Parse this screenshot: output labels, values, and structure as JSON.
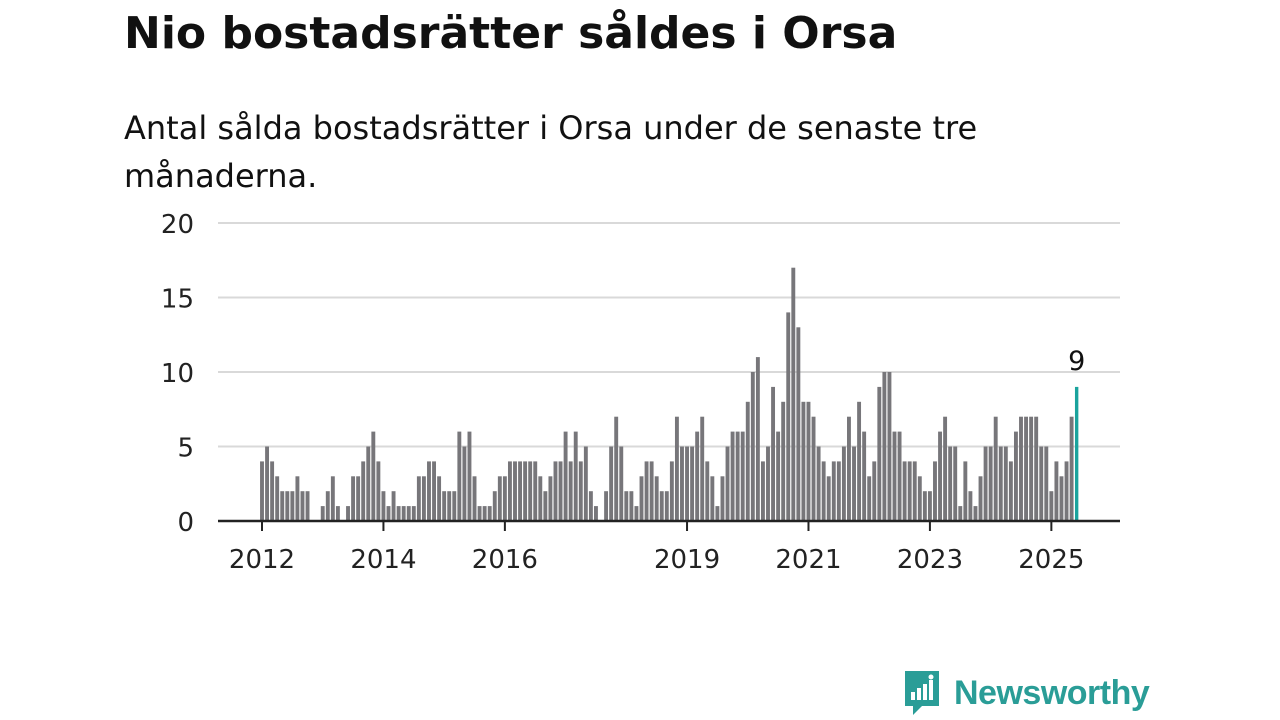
{
  "title": "Nio bostadsrätter såldes i Orsa",
  "subtitle": "Antal sålda bostadsrätter i Orsa under de senaste tre månaderna.",
  "brand": "Newsworthy",
  "colors": {
    "bar": "#77767a",
    "highlight": "#1aa39d",
    "grid": "#d9d9d9",
    "axis": "#222222",
    "brand": "#2a9d97"
  },
  "chart_data": {
    "type": "bar",
    "x_start": "2012-01",
    "x_end": "2025-06",
    "ylim": [
      0,
      20
    ],
    "yticks": [
      0,
      5,
      10,
      15,
      20
    ],
    "ytick_labels": [
      "0",
      "5",
      "10",
      "15",
      "20"
    ],
    "xticks": [
      "2012",
      "2014",
      "2016",
      "2019",
      "2021",
      "2023",
      "2025"
    ],
    "grid": true,
    "highlight_label": "9",
    "values": [
      4,
      5,
      4,
      3,
      2,
      2,
      2,
      3,
      2,
      2,
      0,
      0,
      1,
      2,
      3,
      1,
      0,
      1,
      3,
      3,
      4,
      5,
      6,
      4,
      2,
      1,
      2,
      1,
      1,
      1,
      1,
      3,
      3,
      4,
      4,
      3,
      2,
      2,
      2,
      6,
      5,
      6,
      3,
      1,
      1,
      1,
      2,
      3,
      3,
      4,
      4,
      4,
      4,
      4,
      4,
      3,
      2,
      3,
      4,
      4,
      6,
      4,
      6,
      4,
      5,
      2,
      1,
      0,
      2,
      5,
      7,
      5,
      2,
      2,
      1,
      3,
      4,
      4,
      3,
      2,
      2,
      4,
      7,
      5,
      5,
      5,
      6,
      7,
      4,
      3,
      1,
      3,
      5,
      6,
      6,
      6,
      8,
      10,
      11,
      4,
      5,
      9,
      6,
      8,
      14,
      17,
      13,
      8,
      8,
      7,
      5,
      4,
      3,
      4,
      4,
      5,
      7,
      5,
      8,
      6,
      3,
      4,
      9,
      10,
      10,
      6,
      6,
      4,
      4,
      4,
      3,
      2,
      2,
      4,
      6,
      7,
      5,
      5,
      1,
      4,
      2,
      1,
      3,
      5,
      5,
      7,
      5,
      5,
      4,
      6,
      7,
      7,
      7,
      7,
      5,
      5,
      2,
      4,
      3,
      4,
      7,
      9
    ]
  }
}
